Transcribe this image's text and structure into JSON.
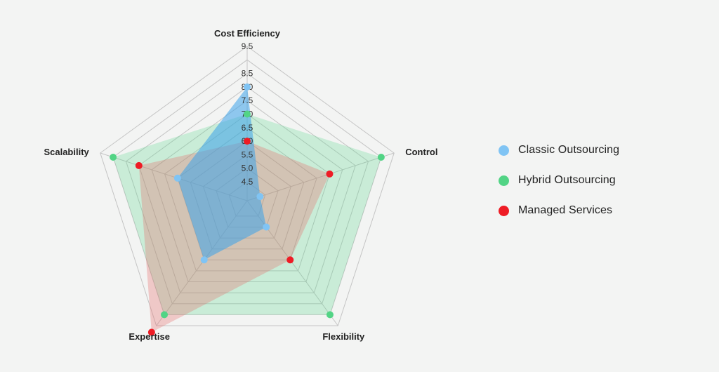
{
  "chart_data": {
    "type": "radar",
    "title": "",
    "axes": [
      "Cost Efficiency",
      "Control",
      "Flexibility",
      "Expertise",
      "Scalability"
    ],
    "rticks": [
      "4.5",
      "5.0",
      "5.5",
      "6.0",
      "6.5",
      "7.0",
      "7.5",
      "8.0",
      "8.5",
      "9.5"
    ],
    "rlim": [
      3.8,
      9.5
    ],
    "grid": true,
    "legend_position": "right",
    "series": [
      {
        "name": "Classic Outsourcing",
        "color": "#80c4f4",
        "fill": "#3aa3ea",
        "values": [
          8.0,
          4.3,
          5.0,
          6.5,
          6.5
        ]
      },
      {
        "name": "Hybrid Outsourcing",
        "color": "#52d485",
        "fill": "#5ed890",
        "values": [
          7.0,
          9.0,
          9.0,
          9.0,
          9.0
        ]
      },
      {
        "name": "Managed Services",
        "color": "#ee1c25",
        "fill": "#e86464",
        "values": [
          6.0,
          7.0,
          6.5,
          9.8,
          8.0
        ]
      }
    ]
  }
}
